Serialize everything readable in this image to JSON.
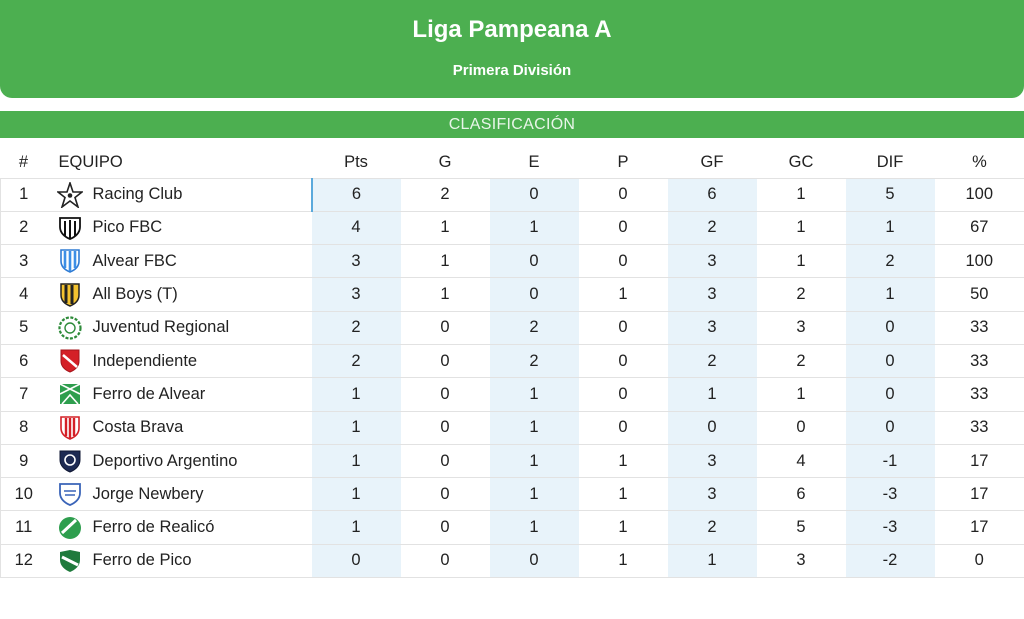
{
  "header": {
    "title": "Liga Pampeana A",
    "subtitle": "Primera División"
  },
  "section": {
    "label": "CLASIFICACIÓN"
  },
  "columns": [
    "#",
    "EQUIPO",
    "Pts",
    "G",
    "E",
    "P",
    "GF",
    "GC",
    "DIF",
    "%"
  ],
  "rows": [
    {
      "pos": "1",
      "team": "Racing Club",
      "crest": "racing-club-crest-icon",
      "pts": "6",
      "g": "2",
      "e": "0",
      "p": "0",
      "gf": "6",
      "gc": "1",
      "dif": "5",
      "pct": "100"
    },
    {
      "pos": "2",
      "team": "Pico FBC",
      "crest": "pico-fbc-crest-icon",
      "pts": "4",
      "g": "1",
      "e": "1",
      "p": "0",
      "gf": "2",
      "gc": "1",
      "dif": "1",
      "pct": "67"
    },
    {
      "pos": "3",
      "team": "Alvear FBC",
      "crest": "alvear-fbc-crest-icon",
      "pts": "3",
      "g": "1",
      "e": "0",
      "p": "0",
      "gf": "3",
      "gc": "1",
      "dif": "2",
      "pct": "100"
    },
    {
      "pos": "4",
      "team": "All Boys (T)",
      "crest": "all-boys-crest-icon",
      "pts": "3",
      "g": "1",
      "e": "0",
      "p": "1",
      "gf": "3",
      "gc": "2",
      "dif": "1",
      "pct": "50"
    },
    {
      "pos": "5",
      "team": "Juventud Regional",
      "crest": "juventud-regional-crest-icon",
      "pts": "2",
      "g": "0",
      "e": "2",
      "p": "0",
      "gf": "3",
      "gc": "3",
      "dif": "0",
      "pct": "33"
    },
    {
      "pos": "6",
      "team": "Independiente",
      "crest": "independiente-crest-icon",
      "pts": "2",
      "g": "0",
      "e": "2",
      "p": "0",
      "gf": "2",
      "gc": "2",
      "dif": "0",
      "pct": "33"
    },
    {
      "pos": "7",
      "team": "Ferro de Alvear",
      "crest": "ferro-de-alvear-crest-icon",
      "pts": "1",
      "g": "0",
      "e": "1",
      "p": "0",
      "gf": "1",
      "gc": "1",
      "dif": "0",
      "pct": "33"
    },
    {
      "pos": "8",
      "team": "Costa Brava",
      "crest": "costa-brava-crest-icon",
      "pts": "1",
      "g": "0",
      "e": "1",
      "p": "0",
      "gf": "0",
      "gc": "0",
      "dif": "0",
      "pct": "33"
    },
    {
      "pos": "9",
      "team": "Deportivo Argentino",
      "crest": "deportivo-argentino-crest-icon",
      "pts": "1",
      "g": "0",
      "e": "1",
      "p": "1",
      "gf": "3",
      "gc": "4",
      "dif": "-1",
      "pct": "17"
    },
    {
      "pos": "10",
      "team": "Jorge Newbery",
      "crest": "jorge-newbery-crest-icon",
      "pts": "1",
      "g": "0",
      "e": "1",
      "p": "1",
      "gf": "3",
      "gc": "6",
      "dif": "-3",
      "pct": "17"
    },
    {
      "pos": "11",
      "team": "Ferro de Realicó",
      "crest": "ferro-de-realico-crest-icon",
      "pts": "1",
      "g": "0",
      "e": "1",
      "p": "1",
      "gf": "2",
      "gc": "5",
      "dif": "-3",
      "pct": "17"
    },
    {
      "pos": "12",
      "team": "Ferro de Pico",
      "crest": "ferro-de-pico-crest-icon",
      "pts": "0",
      "g": "0",
      "e": "0",
      "p": "1",
      "gf": "1",
      "gc": "3",
      "dif": "-2",
      "pct": "0"
    }
  ],
  "colors": {
    "brand_green": "#4caf50",
    "column_shade": "#e8f3fa",
    "selection_line": "#5aa9dc"
  }
}
